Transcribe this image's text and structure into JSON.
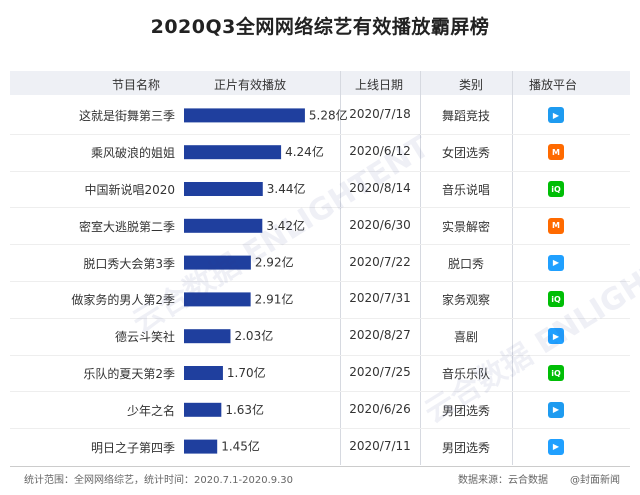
{
  "title": "2020Q3全网网络综艺有效播放霸屏榜",
  "headers": {
    "name": "节目名称",
    "views": "正片有效播放",
    "date": "上线日期",
    "category": "类别",
    "platform": "播放平台"
  },
  "watermark": "云合数据 ENLIGHTENT",
  "chart_data": {
    "type": "bar",
    "orientation": "horizontal",
    "title": "2020Q3全网网络综艺有效播放霸屏榜",
    "xlabel": "正片有效播放",
    "ylabel": "节目名称",
    "categories": [
      "这就是街舞第三季",
      "乘风破浪的姐姐",
      "中国新说唱2020",
      "密室大逃脱第二季",
      "脱口秀大会第3季",
      "做家务的男人第2季",
      "德云斗笑社",
      "乐队的夏天第2季",
      "少年之名",
      "明日之子第四季"
    ],
    "values": [
      5.28,
      4.24,
      3.44,
      3.42,
      2.92,
      2.91,
      2.03,
      1.7,
      1.63,
      1.45
    ],
    "value_labels": [
      "5.28亿",
      "4.24亿",
      "3.44亿",
      "3.42亿",
      "2.92亿",
      "2.91亿",
      "2.03亿",
      "1.70亿",
      "1.63亿",
      "1.45亿"
    ],
    "unit": "亿",
    "bar_color": "#1f3f9e",
    "grid": false
  },
  "rows": [
    {
      "date": "2020/7/18",
      "category": "舞蹈竞技",
      "platform": "youku-icon",
      "platform_color": "#1e9bf0",
      "platform_glyph": "▶"
    },
    {
      "date": "2020/6/12",
      "category": "女团选秀",
      "platform": "mango-tv-icon",
      "platform_color": "#ff6a00",
      "platform_glyph": "M"
    },
    {
      "date": "2020/8/14",
      "category": "音乐说唱",
      "platform": "iqiyi-icon",
      "platform_color": "#00be06",
      "platform_glyph": "iQ"
    },
    {
      "date": "2020/6/30",
      "category": "实景解密",
      "platform": "mango-tv-icon",
      "platform_color": "#ff6a00",
      "platform_glyph": "M"
    },
    {
      "date": "2020/7/22",
      "category": "脱口秀",
      "platform": "tencent-video-icon",
      "platform_color": "#20a0ff",
      "platform_glyph": "▶"
    },
    {
      "date": "2020/7/31",
      "category": "家务观察",
      "platform": "iqiyi-icon",
      "platform_color": "#00be06",
      "platform_glyph": "iQ"
    },
    {
      "date": "2020/8/27",
      "category": "喜剧",
      "platform": "tencent-video-icon",
      "platform_color": "#20a0ff",
      "platform_glyph": "▶"
    },
    {
      "date": "2020/7/25",
      "category": "音乐乐队",
      "platform": "iqiyi-icon",
      "platform_color": "#00be06",
      "platform_glyph": "iQ"
    },
    {
      "date": "2020/6/26",
      "category": "男团选秀",
      "platform": "youku-icon",
      "platform_color": "#1e9bf0",
      "platform_glyph": "▶"
    },
    {
      "date": "2020/7/11",
      "category": "男团选秀",
      "platform": "tencent-video-icon",
      "platform_color": "#20a0ff",
      "platform_glyph": "▶"
    }
  ],
  "footer": {
    "scope": "统计范围：全网网络综艺，统计时间：2020.7.1-2020.9.30",
    "source": "数据来源：云合数据",
    "credit": "@封面新闻"
  }
}
